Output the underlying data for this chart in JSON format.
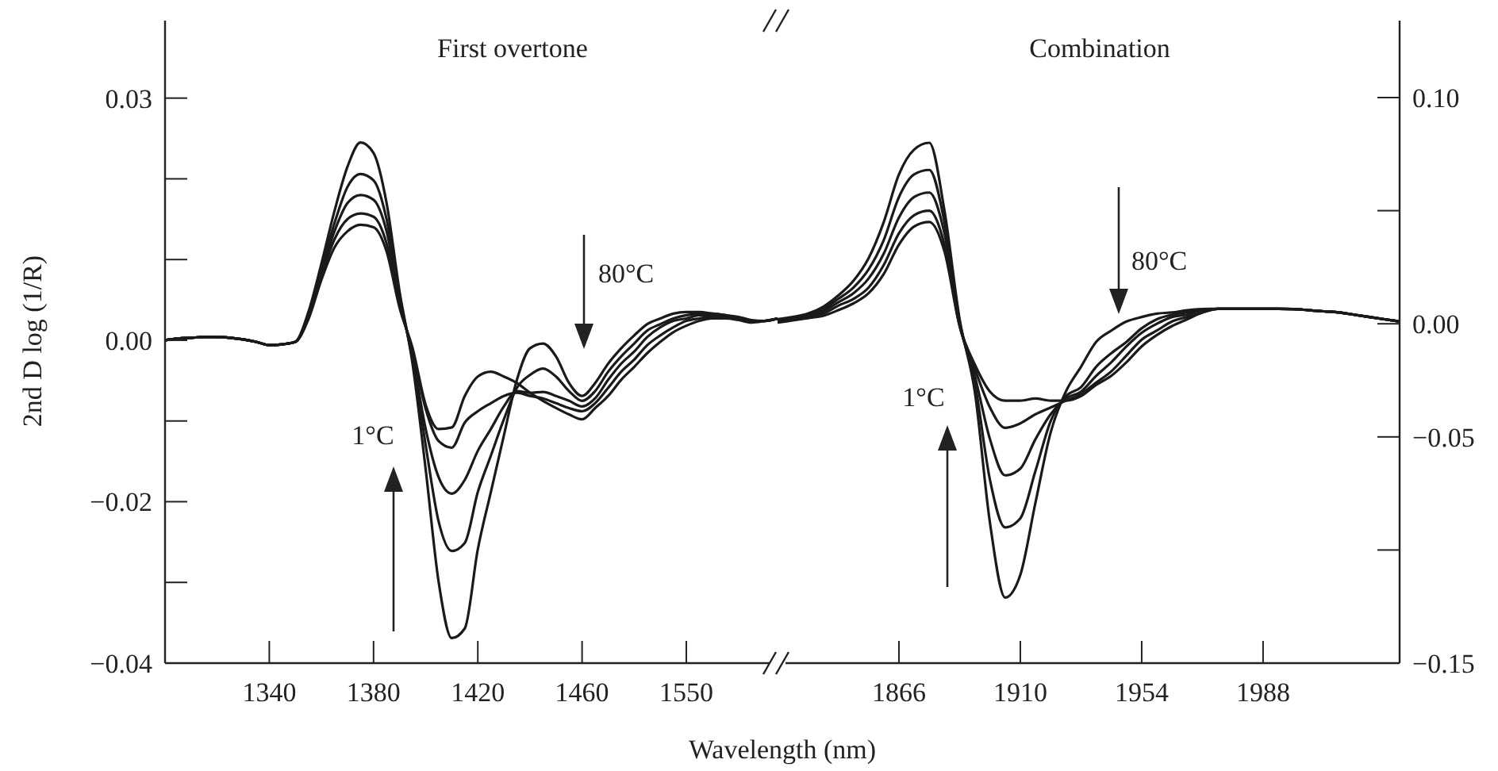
{
  "chart_data": [
    {
      "type": "line",
      "title": "First overtone",
      "xlabel": "Wavelength (nm)",
      "ylabel": "2nd D log (1/R)",
      "categories": [
        null,
        null,
        null,
        null,
        null,
        null,
        null,
        null,
        "1340",
        null,
        null,
        null,
        null,
        null,
        null,
        null,
        "1380",
        null,
        null,
        null,
        null,
        null,
        null,
        null,
        "1420",
        null,
        null,
        null,
        null,
        null,
        null,
        null,
        "1460",
        null,
        null,
        null,
        null,
        null,
        null,
        null,
        "1550",
        null,
        null,
        null,
        null,
        null,
        null,
        null
      ],
      "ylim": [
        -0.04,
        0.0396
      ],
      "yticks": [
        {
          "value": 0.03,
          "label": "0.03"
        },
        {
          "value": 0.02,
          "label": null
        },
        {
          "value": 0.01,
          "label": null
        },
        {
          "value": 0,
          "label": "0.00"
        },
        {
          "value": -0.01,
          "label": null
        },
        {
          "value": -0.02,
          "label": "−0.02"
        },
        {
          "value": -0.03,
          "label": null
        },
        {
          "value": -0.04,
          "label": "−0.04"
        }
      ],
      "annotations": [
        "80°C",
        "1°C"
      ],
      "series": [
        {
          "color": "#1a1a1a",
          "values": [
            0,
            0.0002,
            0.0003,
            0.0004,
            0.0004,
            0.0003,
            0.0001,
            -0.0002,
            -0.0006,
            -0.0005,
            -0.0002,
            0.0035,
            0.0095,
            0.016,
            0.0215,
            0.0245,
            0.0232,
            0.017,
            0.006,
            -0.003,
            -0.016,
            -0.03,
            -0.0369,
            -0.0357,
            -0.0259,
            -0.0188,
            -0.0118,
            -0.0049,
            -0.001,
            -0.0004,
            -0.002,
            -0.0053,
            -0.0069,
            -0.0053,
            -0.0029,
            -0.001,
            0.0006,
            0.002,
            0.0027,
            0.0033,
            0.0035,
            0.0035,
            0.0033,
            0.0031,
            0.0029,
            0.0025,
            0.0024,
            0.0027
          ]
        },
        {
          "color": "#1a1a1a",
          "values": [
            0,
            0.0002,
            0.0003,
            0.0004,
            0.0004,
            0.0003,
            0.0001,
            -0.0002,
            -0.0006,
            -0.0005,
            -0.0002,
            0.0032,
            0.009,
            0.0145,
            0.019,
            0.0206,
            0.0198,
            0.015,
            0.0055,
            -0.0025,
            -0.013,
            -0.0225,
            -0.0261,
            -0.0251,
            -0.0188,
            -0.0143,
            -0.0098,
            -0.0059,
            -0.0043,
            -0.0035,
            -0.0045,
            -0.0063,
            -0.0075,
            -0.0063,
            -0.0039,
            -0.002,
            -0.0004,
            0.0012,
            0.002,
            0.0027,
            0.0031,
            0.0033,
            0.0033,
            0.0031,
            0.0027,
            0.0024,
            0.0024,
            0.0027
          ]
        },
        {
          "color": "#1a1a1a",
          "values": [
            0,
            0.0002,
            0.0003,
            0.0004,
            0.0004,
            0.0003,
            0.0001,
            -0.0002,
            -0.0006,
            -0.0005,
            -0.0002,
            0.003,
            0.0085,
            0.0135,
            0.017,
            0.018,
            0.0174,
            0.0135,
            0.005,
            -0.002,
            -0.011,
            -0.017,
            -0.019,
            -0.0173,
            -0.0137,
            -0.011,
            -0.0082,
            -0.0063,
            -0.0065,
            -0.0064,
            -0.0069,
            -0.0075,
            -0.0082,
            -0.0072,
            -0.0049,
            -0.0029,
            -0.0014,
            0.0004,
            0.0016,
            0.0024,
            0.0027,
            0.0031,
            0.0031,
            0.0029,
            0.0027,
            0.0024,
            0.0024,
            0.0027
          ]
        },
        {
          "color": "#1a1a1a",
          "values": [
            0,
            0.0002,
            0.0003,
            0.0004,
            0.0004,
            0.0003,
            0.0001,
            -0.0002,
            -0.0006,
            -0.0005,
            -0.0002,
            0.0028,
            0.008,
            0.0125,
            0.015,
            0.0157,
            0.0153,
            0.012,
            0.0045,
            -0.0015,
            -0.0085,
            -0.0125,
            -0.0133,
            -0.0102,
            -0.0088,
            -0.0078,
            -0.0069,
            -0.0065,
            -0.0069,
            -0.0072,
            -0.0078,
            -0.0084,
            -0.0088,
            -0.0078,
            -0.0059,
            -0.0039,
            -0.0024,
            -0.0006,
            0.0006,
            0.0016,
            0.0024,
            0.0027,
            0.0029,
            0.0029,
            0.0027,
            0.0024,
            0.0024,
            0.0027
          ]
        },
        {
          "color": "#1a1a1a",
          "values": [
            0,
            0.0002,
            0.0003,
            0.0004,
            0.0004,
            0.0003,
            0.0001,
            -0.0002,
            -0.0006,
            -0.0005,
            -0.0002,
            0.0026,
            0.0075,
            0.0115,
            0.0135,
            0.0143,
            0.014,
            0.011,
            0.004,
            -0.001,
            -0.008,
            -0.011,
            -0.0108,
            -0.0069,
            -0.0045,
            -0.0039,
            -0.0045,
            -0.0053,
            -0.0065,
            -0.0075,
            -0.0084,
            -0.0092,
            -0.0098,
            -0.0084,
            -0.0069,
            -0.0049,
            -0.0033,
            -0.0016,
            -0.0002,
            0.001,
            0.0018,
            0.0024,
            0.0027,
            0.0027,
            0.0025,
            0.0022,
            0.0024,
            0.0027
          ]
        }
      ]
    },
    {
      "type": "line",
      "title": "Combination",
      "categories": [
        null,
        null,
        null,
        null,
        null,
        null,
        null,
        null,
        "1866",
        null,
        null,
        null,
        null,
        null,
        null,
        null,
        "1910",
        null,
        null,
        null,
        null,
        null,
        null,
        null,
        "1954",
        null,
        null,
        null,
        null,
        null,
        null,
        null,
        "1988",
        null,
        null,
        null,
        null,
        null,
        null,
        null,
        null,
        null
      ],
      "y2lim": [
        -0.15,
        0.134
      ],
      "y2ticks": [
        {
          "value": 0.1,
          "label": "0.10"
        },
        {
          "value": 0.05,
          "label": null
        },
        {
          "value": 0,
          "label": "0.00"
        },
        {
          "value": -0.05,
          "label": "−0.05"
        },
        {
          "value": -0.1,
          "label": null
        },
        {
          "value": -0.15,
          "label": "−0.15"
        }
      ],
      "annotations": [
        "1°C",
        "80°C"
      ],
      "series": [
        {
          "color": "#1a1a1a",
          "axis": "y2",
          "values": [
            0.002,
            0.003,
            0.0045,
            0.0075,
            0.0125,
            0.019,
            0.029,
            0.045,
            0.066,
            0.077,
            0.08,
            0.05,
            0.002,
            -0.03,
            -0.088,
            -0.121,
            -0.111,
            -0.079,
            -0.048,
            -0.03,
            -0.019,
            -0.008,
            -0.003,
            0.001,
            0.003,
            0.0045,
            0.005,
            0.006,
            0.0065,
            0.0066,
            0.0066,
            0.0066,
            0.0066,
            0.0066,
            0.0065,
            0.006,
            0.0055,
            0.005,
            0.004,
            0.003,
            0.002,
            0.001
          ]
        },
        {
          "color": "#1a1a1a",
          "axis": "y2",
          "values": [
            0.0015,
            0.0025,
            0.004,
            0.0065,
            0.011,
            0.016,
            0.024,
            0.037,
            0.056,
            0.066,
            0.068,
            0.045,
            0.001,
            -0.026,
            -0.069,
            -0.09,
            -0.086,
            -0.065,
            -0.043,
            -0.032,
            -0.028,
            -0.019,
            -0.013,
            -0.008,
            -0.002,
            0.002,
            0.004,
            0.005,
            0.006,
            0.0066,
            0.0066,
            0.0066,
            0.0066,
            0.0066,
            0.0065,
            0.006,
            0.0055,
            0.005,
            0.004,
            0.003,
            0.002,
            0.001
          ]
        },
        {
          "color": "#1a1a1a",
          "axis": "y2",
          "values": [
            0.001,
            0.002,
            0.0035,
            0.0055,
            0.0095,
            0.0135,
            0.02,
            0.031,
            0.047,
            0.056,
            0.058,
            0.04,
            0,
            -0.023,
            -0.051,
            -0.067,
            -0.064,
            -0.051,
            -0.04,
            -0.033,
            -0.03,
            -0.023,
            -0.017,
            -0.01,
            -0.004,
            0,
            0.003,
            0.004,
            0.006,
            0.0066,
            0.0066,
            0.0066,
            0.0066,
            0.0066,
            0.0065,
            0.006,
            0.0055,
            0.005,
            0.004,
            0.003,
            0.002,
            0.001
          ]
        },
        {
          "color": "#1a1a1a",
          "axis": "y2",
          "values": [
            0.001,
            0.002,
            0.003,
            0.0045,
            0.008,
            0.011,
            0.016,
            0.026,
            0.04,
            0.048,
            0.05,
            0.035,
            -0.001,
            -0.02,
            -0.037,
            -0.046,
            -0.044,
            -0.04,
            -0.037,
            -0.034,
            -0.031,
            -0.026,
            -0.021,
            -0.014,
            -0.007,
            -0.003,
            0.001,
            0.003,
            0.005,
            0.0066,
            0.0066,
            0.0066,
            0.0066,
            0.0066,
            0.0065,
            0.006,
            0.0055,
            0.005,
            0.004,
            0.003,
            0.002,
            0.001
          ]
        },
        {
          "color": "#1a1a1a",
          "axis": "y2",
          "values": [
            0.0005,
            0.0015,
            0.0025,
            0.0035,
            0.006,
            0.009,
            0.0135,
            0.022,
            0.035,
            0.043,
            0.045,
            0.032,
            -0.001,
            -0.018,
            -0.03,
            -0.034,
            -0.034,
            -0.033,
            -0.034,
            -0.034,
            -0.032,
            -0.027,
            -0.023,
            -0.017,
            -0.01,
            -0.005,
            -0.001,
            0.002,
            0.005,
            0.0066,
            0.0066,
            0.0066,
            0.0066,
            0.0066,
            0.0065,
            0.006,
            0.0055,
            0.005,
            0.004,
            0.003,
            0.002,
            0.001
          ]
        }
      ]
    }
  ]
}
